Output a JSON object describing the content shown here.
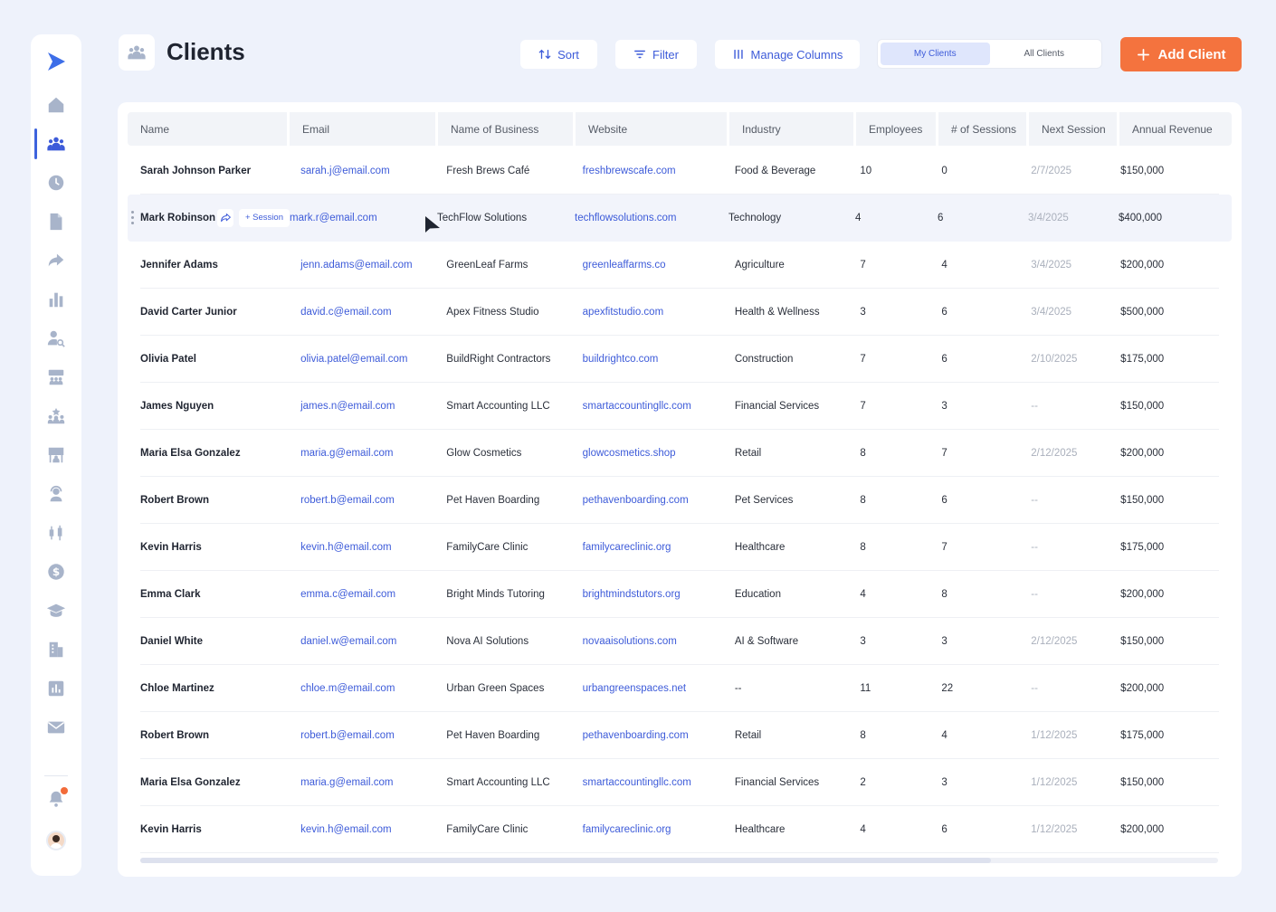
{
  "page": {
    "title": "Clients"
  },
  "toolbar": {
    "sort_label": "Sort",
    "filter_label": "Filter",
    "manage_columns_label": "Manage Columns",
    "segment": {
      "my_clients": "My Clients",
      "all_clients": "All Clients",
      "active": "My Clients"
    },
    "add_client_label": "Add Client"
  },
  "sidebar": {
    "items": [
      "home-icon",
      "clients-icon",
      "clock-icon",
      "document-icon",
      "share-icon",
      "bar-chart-icon",
      "user-search-icon",
      "team-board-icon",
      "team-star-icon",
      "presentation-icon",
      "user-support-icon",
      "candlestick-icon",
      "dollar-icon",
      "graduation-cap-icon",
      "building-icon",
      "report-icon",
      "mail-icon"
    ],
    "active": "clients-icon"
  },
  "table": {
    "columns": [
      "Name",
      "Email",
      "Name of Business",
      "Website",
      "Industry",
      "Employees",
      "# of Sessions",
      "Next Session",
      "Annual Revenue"
    ],
    "hover_row_actions": {
      "session_label": "+ Session"
    },
    "rows": [
      {
        "name": "Sarah Johnson Parker",
        "email": "sarah.j@email.com",
        "business": "Fresh Brews Café",
        "website": "freshbrewscafe.com",
        "industry": "Food & Beverage",
        "employees": "10",
        "sessions": "0",
        "next_session": "2/7/2025",
        "revenue": "$150,000"
      },
      {
        "name": "Mark Robinson",
        "email": "mark.r@email.com",
        "business": "TechFlow Solutions",
        "website": "techflowsolutions.com",
        "industry": "Technology",
        "employees": "4",
        "sessions": "6",
        "next_session": "3/4/2025",
        "revenue": "$400,000"
      },
      {
        "name": "Jennifer Adams",
        "email": "jenn.adams@email.com",
        "business": "GreenLeaf Farms",
        "website": "greenleaffarms.co",
        "industry": "Agriculture",
        "employees": "7",
        "sessions": "4",
        "next_session": "3/4/2025",
        "revenue": "$200,000"
      },
      {
        "name": "David Carter Junior",
        "email": "david.c@email.com",
        "business": "Apex Fitness Studio",
        "website": "apexfitstudio.com",
        "industry": "Health & Wellness",
        "employees": "3",
        "sessions": "6",
        "next_session": "3/4/2025",
        "revenue": "$500,000"
      },
      {
        "name": "Olivia Patel",
        "email": "olivia.patel@email.com",
        "business": "BuildRight Contractors",
        "website": "buildrightco.com",
        "industry": "Construction",
        "employees": "7",
        "sessions": "6",
        "next_session": "2/10/2025",
        "revenue": "$175,000"
      },
      {
        "name": "James Nguyen",
        "email": "james.n@email.com",
        "business": "Smart Accounting LLC",
        "website": "smartaccountingllc.com",
        "industry": "Financial Services",
        "employees": "7",
        "sessions": "3",
        "next_session": "--",
        "revenue": "$150,000"
      },
      {
        "name": "Maria Elsa Gonzalez",
        "email": "maria.g@email.com",
        "business": "Glow Cosmetics",
        "website": "glowcosmetics.shop",
        "industry": "Retail",
        "employees": "8",
        "sessions": "7",
        "next_session": "2/12/2025",
        "revenue": "$200,000"
      },
      {
        "name": "Robert Brown",
        "email": "robert.b@email.com",
        "business": "Pet Haven Boarding",
        "website": "pethavenboarding.com",
        "industry": "Pet Services",
        "employees": "8",
        "sessions": "6",
        "next_session": "--",
        "revenue": "$150,000"
      },
      {
        "name": "Kevin Harris",
        "email": "kevin.h@email.com",
        "business": "FamilyCare Clinic",
        "website": "familycareclinic.org",
        "industry": "Healthcare",
        "employees": "8",
        "sessions": "7",
        "next_session": "--",
        "revenue": "$175,000"
      },
      {
        "name": "Emma Clark",
        "email": "emma.c@email.com",
        "business": "Bright Minds Tutoring",
        "website": "brightmindstutors.org",
        "industry": "Education",
        "employees": "4",
        "sessions": "8",
        "next_session": "--",
        "revenue": "$200,000"
      },
      {
        "name": "Daniel White",
        "email": "daniel.w@email.com",
        "business": "Nova AI Solutions",
        "website": "novaaisolutions.com",
        "industry": "AI & Software",
        "employees": "3",
        "sessions": "3",
        "next_session": "2/12/2025",
        "revenue": "$150,000"
      },
      {
        "name": "Chloe Martinez",
        "email": "chloe.m@email.com",
        "business": "Urban Green Spaces",
        "website": "urbangreenspaces.net",
        "industry": "--",
        "employees": "11",
        "sessions": "22",
        "next_session": "--",
        "revenue": "$200,000"
      },
      {
        "name": "Robert Brown",
        "email": "robert.b@email.com",
        "business": "Pet Haven Boarding",
        "website": "pethavenboarding.com",
        "industry": "Retail",
        "employees": "8",
        "sessions": "4",
        "next_session": "1/12/2025",
        "revenue": "$175,000"
      },
      {
        "name": "Maria Elsa Gonzalez",
        "email": "maria.g@email.com",
        "business": "Smart Accounting LLC",
        "website": "smartaccountingllc.com",
        "industry": "Financial Services",
        "employees": "2",
        "sessions": "3",
        "next_session": "1/12/2025",
        "revenue": "$150,000"
      },
      {
        "name": "Kevin Harris",
        "email": "kevin.h@email.com",
        "business": "FamilyCare Clinic",
        "website": "familycareclinic.org",
        "industry": "Healthcare",
        "employees": "4",
        "sessions": "6",
        "next_session": "1/12/2025",
        "revenue": "$200,000"
      }
    ],
    "hover_row_index": 1
  },
  "colors": {
    "accent": "#3d5bd9",
    "primary_action": "#f4733e",
    "background": "#eef2fb"
  }
}
